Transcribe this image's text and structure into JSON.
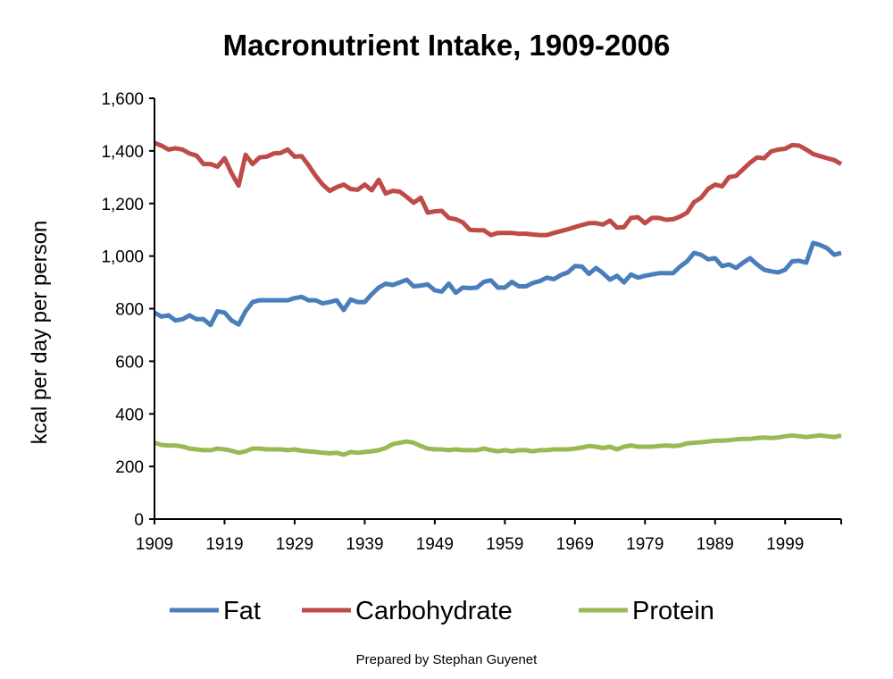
{
  "chart_data": {
    "type": "line",
    "title": "Macronutrient Intake, 1909-2006",
    "xlabel": "",
    "ylabel": "kcal per day per person",
    "xlim": [
      1909,
      2006
    ],
    "ylim": [
      0,
      1600
    ],
    "yticks": [
      0,
      200,
      400,
      600,
      800,
      1000,
      1200,
      1400,
      1600
    ],
    "ytick_labels": [
      "0",
      "200",
      "400",
      "600",
      "800",
      "1,000",
      "1,200",
      "1,400",
      "1,600"
    ],
    "xticks": [
      1909,
      1919,
      1929,
      1939,
      1949,
      1959,
      1969,
      1979,
      1989,
      1999
    ],
    "xtick_labels": [
      "1909",
      "1919",
      "1929",
      "1939",
      "1949",
      "1959",
      "1969",
      "1979",
      "1989",
      "1999"
    ],
    "legend_position": "bottom",
    "grid": false,
    "series": [
      {
        "name": "Fat",
        "color": "#4a7ebb",
        "points": [
          [
            1909,
            785
          ],
          [
            1910,
            770
          ],
          [
            1911,
            775
          ],
          [
            1912,
            755
          ],
          [
            1913,
            760
          ],
          [
            1914,
            775
          ],
          [
            1915,
            760
          ],
          [
            1916,
            760
          ],
          [
            1917,
            738
          ],
          [
            1918,
            790
          ],
          [
            1919,
            785
          ],
          [
            1920,
            755
          ],
          [
            1921,
            740
          ],
          [
            1922,
            790
          ],
          [
            1923,
            825
          ],
          [
            1924,
            832
          ],
          [
            1925,
            832
          ],
          [
            1926,
            832
          ],
          [
            1927,
            832
          ],
          [
            1928,
            832
          ],
          [
            1929,
            840
          ],
          [
            1930,
            845
          ],
          [
            1931,
            832
          ],
          [
            1932,
            832
          ],
          [
            1933,
            820
          ],
          [
            1934,
            825
          ],
          [
            1935,
            832
          ],
          [
            1936,
            795
          ],
          [
            1937,
            835
          ],
          [
            1938,
            825
          ],
          [
            1939,
            825
          ],
          [
            1940,
            855
          ],
          [
            1941,
            880
          ],
          [
            1942,
            895
          ],
          [
            1943,
            890
          ],
          [
            1944,
            900
          ],
          [
            1945,
            910
          ],
          [
            1946,
            885
          ],
          [
            1947,
            888
          ],
          [
            1948,
            892
          ],
          [
            1949,
            870
          ],
          [
            1950,
            865
          ],
          [
            1951,
            895
          ],
          [
            1952,
            860
          ],
          [
            1953,
            880
          ],
          [
            1954,
            878
          ],
          [
            1955,
            880
          ],
          [
            1956,
            902
          ],
          [
            1957,
            908
          ],
          [
            1958,
            880
          ],
          [
            1959,
            880
          ],
          [
            1960,
            902
          ],
          [
            1961,
            885
          ],
          [
            1962,
            885
          ],
          [
            1963,
            898
          ],
          [
            1964,
            905
          ],
          [
            1965,
            918
          ],
          [
            1966,
            912
          ],
          [
            1967,
            928
          ],
          [
            1968,
            938
          ],
          [
            1969,
            962
          ],
          [
            1970,
            960
          ],
          [
            1971,
            932
          ],
          [
            1972,
            955
          ],
          [
            1973,
            935
          ],
          [
            1974,
            910
          ],
          [
            1975,
            925
          ],
          [
            1976,
            900
          ],
          [
            1977,
            930
          ],
          [
            1978,
            918
          ],
          [
            1979,
            925
          ],
          [
            1980,
            930
          ],
          [
            1981,
            935
          ],
          [
            1982,
            935
          ],
          [
            1983,
            935
          ],
          [
            1984,
            960
          ],
          [
            1985,
            980
          ],
          [
            1986,
            1012
          ],
          [
            1987,
            1005
          ],
          [
            1988,
            988
          ],
          [
            1989,
            992
          ],
          [
            1990,
            962
          ],
          [
            1991,
            968
          ],
          [
            1992,
            955
          ],
          [
            1993,
            975
          ],
          [
            1994,
            992
          ],
          [
            1995,
            968
          ],
          [
            1996,
            948
          ],
          [
            1997,
            942
          ],
          [
            1998,
            938
          ],
          [
            1999,
            948
          ],
          [
            2000,
            980
          ],
          [
            2001,
            982
          ],
          [
            2002,
            975
          ],
          [
            2003,
            1050
          ],
          [
            2004,
            1042
          ],
          [
            2005,
            1030
          ],
          [
            2006,
            1005
          ],
          [
            2007,
            1012
          ]
        ]
      },
      {
        "name": "Carbohydrate",
        "color": "#be4b48",
        "points": [
          [
            1909,
            1430
          ],
          [
            1910,
            1420
          ],
          [
            1911,
            1405
          ],
          [
            1912,
            1410
          ],
          [
            1913,
            1405
          ],
          [
            1914,
            1390
          ],
          [
            1915,
            1382
          ],
          [
            1916,
            1350
          ],
          [
            1917,
            1350
          ],
          [
            1918,
            1340
          ],
          [
            1919,
            1372
          ],
          [
            1920,
            1315
          ],
          [
            1921,
            1268
          ],
          [
            1922,
            1385
          ],
          [
            1923,
            1350
          ],
          [
            1924,
            1375
          ],
          [
            1925,
            1378
          ],
          [
            1926,
            1390
          ],
          [
            1927,
            1392
          ],
          [
            1928,
            1405
          ],
          [
            1929,
            1378
          ],
          [
            1930,
            1380
          ],
          [
            1931,
            1345
          ],
          [
            1932,
            1305
          ],
          [
            1933,
            1272
          ],
          [
            1934,
            1248
          ],
          [
            1935,
            1262
          ],
          [
            1936,
            1272
          ],
          [
            1937,
            1255
          ],
          [
            1938,
            1252
          ],
          [
            1939,
            1272
          ],
          [
            1940,
            1250
          ],
          [
            1941,
            1290
          ],
          [
            1942,
            1238
          ],
          [
            1943,
            1248
          ],
          [
            1944,
            1245
          ],
          [
            1945,
            1225
          ],
          [
            1946,
            1203
          ],
          [
            1947,
            1222
          ],
          [
            1948,
            1165
          ],
          [
            1949,
            1170
          ],
          [
            1950,
            1172
          ],
          [
            1951,
            1145
          ],
          [
            1952,
            1140
          ],
          [
            1953,
            1128
          ],
          [
            1954,
            1100
          ],
          [
            1955,
            1098
          ],
          [
            1956,
            1098
          ],
          [
            1957,
            1080
          ],
          [
            1958,
            1088
          ],
          [
            1959,
            1088
          ],
          [
            1960,
            1088
          ],
          [
            1961,
            1085
          ],
          [
            1962,
            1085
          ],
          [
            1963,
            1082
          ],
          [
            1964,
            1080
          ],
          [
            1965,
            1080
          ],
          [
            1966,
            1088
          ],
          [
            1967,
            1095
          ],
          [
            1968,
            1102
          ],
          [
            1969,
            1110
          ],
          [
            1970,
            1118
          ],
          [
            1971,
            1125
          ],
          [
            1972,
            1125
          ],
          [
            1973,
            1120
          ],
          [
            1974,
            1135
          ],
          [
            1975,
            1108
          ],
          [
            1976,
            1110
          ],
          [
            1977,
            1145
          ],
          [
            1978,
            1148
          ],
          [
            1979,
            1125
          ],
          [
            1980,
            1145
          ],
          [
            1981,
            1145
          ],
          [
            1982,
            1138
          ],
          [
            1983,
            1140
          ],
          [
            1984,
            1150
          ],
          [
            1985,
            1165
          ],
          [
            1986,
            1205
          ],
          [
            1987,
            1222
          ],
          [
            1988,
            1255
          ],
          [
            1989,
            1272
          ],
          [
            1990,
            1265
          ],
          [
            1991,
            1300
          ],
          [
            1992,
            1305
          ],
          [
            1993,
            1330
          ],
          [
            1994,
            1355
          ],
          [
            1995,
            1375
          ],
          [
            1996,
            1372
          ],
          [
            1997,
            1398
          ],
          [
            1998,
            1405
          ],
          [
            1999,
            1408
          ],
          [
            2000,
            1422
          ],
          [
            2001,
            1420
          ],
          [
            2002,
            1405
          ],
          [
            2003,
            1388
          ],
          [
            2004,
            1380
          ],
          [
            2005,
            1372
          ],
          [
            2006,
            1365
          ],
          [
            2007,
            1350
          ]
        ]
      },
      {
        "name": "Protein",
        "color": "#98b954",
        "points": [
          [
            1909,
            290
          ],
          [
            1910,
            282
          ],
          [
            1911,
            280
          ],
          [
            1912,
            280
          ],
          [
            1913,
            276
          ],
          [
            1914,
            268
          ],
          [
            1915,
            265
          ],
          [
            1916,
            262
          ],
          [
            1917,
            262
          ],
          [
            1918,
            268
          ],
          [
            1919,
            265
          ],
          [
            1920,
            260
          ],
          [
            1921,
            252
          ],
          [
            1922,
            258
          ],
          [
            1923,
            268
          ],
          [
            1924,
            268
          ],
          [
            1925,
            265
          ],
          [
            1926,
            265
          ],
          [
            1927,
            265
          ],
          [
            1928,
            262
          ],
          [
            1929,
            265
          ],
          [
            1930,
            260
          ],
          [
            1931,
            258
          ],
          [
            1932,
            255
          ],
          [
            1933,
            252
          ],
          [
            1934,
            250
          ],
          [
            1935,
            252
          ],
          [
            1936,
            245
          ],
          [
            1937,
            255
          ],
          [
            1938,
            252
          ],
          [
            1939,
            255
          ],
          [
            1940,
            258
          ],
          [
            1941,
            262
          ],
          [
            1942,
            270
          ],
          [
            1943,
            285
          ],
          [
            1944,
            290
          ],
          [
            1945,
            295
          ],
          [
            1946,
            290
          ],
          [
            1947,
            278
          ],
          [
            1948,
            268
          ],
          [
            1949,
            265
          ],
          [
            1950,
            265
          ],
          [
            1951,
            262
          ],
          [
            1952,
            265
          ],
          [
            1953,
            262
          ],
          [
            1954,
            262
          ],
          [
            1955,
            262
          ],
          [
            1956,
            268
          ],
          [
            1957,
            262
          ],
          [
            1958,
            258
          ],
          [
            1959,
            262
          ],
          [
            1960,
            258
          ],
          [
            1961,
            262
          ],
          [
            1962,
            262
          ],
          [
            1963,
            258
          ],
          [
            1964,
            262
          ],
          [
            1965,
            262
          ],
          [
            1966,
            265
          ],
          [
            1967,
            265
          ],
          [
            1968,
            265
          ],
          [
            1969,
            268
          ],
          [
            1970,
            272
          ],
          [
            1971,
            278
          ],
          [
            1972,
            275
          ],
          [
            1973,
            270
          ],
          [
            1974,
            275
          ],
          [
            1975,
            265
          ],
          [
            1976,
            275
          ],
          [
            1977,
            280
          ],
          [
            1978,
            275
          ],
          [
            1979,
            275
          ],
          [
            1980,
            275
          ],
          [
            1981,
            278
          ],
          [
            1982,
            280
          ],
          [
            1983,
            278
          ],
          [
            1984,
            280
          ],
          [
            1985,
            288
          ],
          [
            1986,
            290
          ],
          [
            1987,
            292
          ],
          [
            1988,
            295
          ],
          [
            1989,
            298
          ],
          [
            1990,
            298
          ],
          [
            1991,
            300
          ],
          [
            1992,
            303
          ],
          [
            1993,
            305
          ],
          [
            1994,
            305
          ],
          [
            1995,
            308
          ],
          [
            1996,
            310
          ],
          [
            1997,
            308
          ],
          [
            1998,
            310
          ],
          [
            1999,
            315
          ],
          [
            2000,
            318
          ],
          [
            2001,
            315
          ],
          [
            2002,
            312
          ],
          [
            2003,
            315
          ],
          [
            2004,
            318
          ],
          [
            2005,
            315
          ],
          [
            2006,
            312
          ],
          [
            2007,
            318
          ]
        ]
      }
    ]
  },
  "footer": {
    "credit": "Prepared by Stephan Guyenet"
  }
}
